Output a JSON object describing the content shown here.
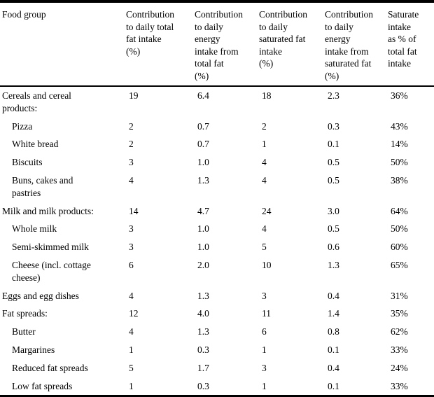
{
  "table": {
    "columns": [
      {
        "label": "Food group"
      },
      {
        "label": "Contribution\nto daily total\nfat intake\n(%)"
      },
      {
        "label": "Contribution\nto daily\nenergy\nintake from\ntotal fat\n(%)"
      },
      {
        "label": "Contribution\nto daily\nsaturated fat\nintake\n(%)"
      },
      {
        "label": "Contribution\nto daily\nenergy\nintake from\nsaturated fat\n(%)"
      },
      {
        "label": "Saturate\nintake\nas % of\ntotal fat\nintake"
      }
    ],
    "rows": [
      {
        "food_group": "Cereals and cereal\nproducts:",
        "total_fat": "19",
        "energy_total_fat": "6.4",
        "saturated_fat": "18",
        "energy_saturated_fat": "2.3",
        "saturate_share": "36%"
      },
      {
        "food_group": "Pizza",
        "total_fat": "2",
        "energy_total_fat": "0.7",
        "saturated_fat": "2",
        "energy_saturated_fat": "0.3",
        "saturate_share": "43%"
      },
      {
        "food_group": "White bread",
        "total_fat": "2",
        "energy_total_fat": "0.7",
        "saturated_fat": "1",
        "energy_saturated_fat": "0.1",
        "saturate_share": "14%"
      },
      {
        "food_group": "Biscuits",
        "total_fat": "3",
        "energy_total_fat": "1.0",
        "saturated_fat": "4",
        "energy_saturated_fat": "0.5",
        "saturate_share": "50%"
      },
      {
        "food_group": "Buns, cakes and\npastries",
        "total_fat": "4",
        "energy_total_fat": "1.3",
        "saturated_fat": "4",
        "energy_saturated_fat": "0.5",
        "saturate_share": "38%"
      },
      {
        "food_group": "Milk and milk products:",
        "total_fat": "14",
        "energy_total_fat": "4.7",
        "saturated_fat": "24",
        "energy_saturated_fat": "3.0",
        "saturate_share": "64%"
      },
      {
        "food_group": "Whole milk",
        "total_fat": "3",
        "energy_total_fat": "1.0",
        "saturated_fat": "4",
        "energy_saturated_fat": "0.5",
        "saturate_share": "50%"
      },
      {
        "food_group": "Semi-skimmed milk",
        "total_fat": "3",
        "energy_total_fat": "1.0",
        "saturated_fat": "5",
        "energy_saturated_fat": "0.6",
        "saturate_share": "60%"
      },
      {
        "food_group": "Cheese (incl. cottage\ncheese)",
        "total_fat": "6",
        "energy_total_fat": "2.0",
        "saturated_fat": "10",
        "energy_saturated_fat": "1.3",
        "saturate_share": "65%"
      },
      {
        "food_group": "Eggs and egg dishes",
        "total_fat": "4",
        "energy_total_fat": "1.3",
        "saturated_fat": "3",
        "energy_saturated_fat": "0.4",
        "saturate_share": "31%"
      },
      {
        "food_group": "Fat spreads:",
        "total_fat": "12",
        "energy_total_fat": "4.0",
        "saturated_fat": "11",
        "energy_saturated_fat": "1.4",
        "saturate_share": "35%"
      },
      {
        "food_group": "Butter",
        "total_fat": "4",
        "energy_total_fat": "1.3",
        "saturated_fat": "6",
        "energy_saturated_fat": "0.8",
        "saturate_share": "62%"
      },
      {
        "food_group": "Margarines",
        "total_fat": "1",
        "energy_total_fat": "0.3",
        "saturated_fat": "1",
        "energy_saturated_fat": "0.1",
        "saturate_share": "33%"
      },
      {
        "food_group": "Reduced fat spreads",
        "total_fat": "5",
        "energy_total_fat": "1.7",
        "saturated_fat": "3",
        "energy_saturated_fat": "0.4",
        "saturate_share": "24%"
      },
      {
        "food_group": "Low fat spreads",
        "total_fat": "1",
        "energy_total_fat": "0.3",
        "saturated_fat": "1",
        "energy_saturated_fat": "0.1",
        "saturate_share": "33%"
      }
    ]
  }
}
